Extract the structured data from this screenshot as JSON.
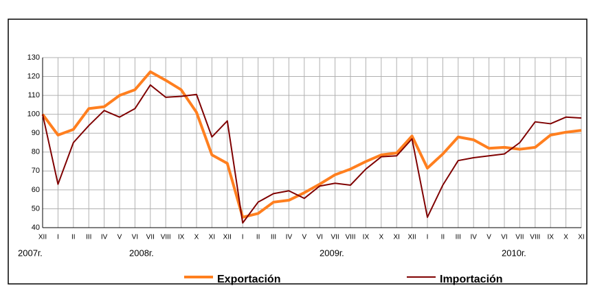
{
  "chart_data": {
    "type": "line",
    "categories": [
      "XII",
      "I",
      "II",
      "III",
      "IV",
      "V",
      "VI",
      "VII",
      "VIII",
      "IX",
      "X",
      "XI",
      "XII",
      "I",
      "II",
      "III",
      "IV",
      "V",
      "VI",
      "VII",
      "VIII",
      "IX",
      "X",
      "XI",
      "XII",
      "I",
      "II",
      "III",
      "IV",
      "V",
      "VI",
      "VII",
      "VIII",
      "IX",
      "X",
      "XI"
    ],
    "year_labels": [
      "2007г.",
      "2008г.",
      "2009г.",
      "2010г."
    ],
    "series": [
      {
        "name": "Exportación",
        "color": "#ff7f1f",
        "values": [
          100,
          89,
          92,
          103,
          104,
          110,
          113,
          122.5,
          118,
          113,
          101,
          78.5,
          74,
          45.5,
          47.5,
          53.5,
          54.5,
          58.5,
          63,
          68,
          71,
          75,
          78.5,
          79.5,
          88.5,
          71.5,
          79,
          88,
          86.5,
          82,
          82.5,
          81.5,
          82.5,
          89,
          90.5,
          91.5
        ]
      },
      {
        "name": "Importación",
        "color": "#7f0000",
        "values": [
          100,
          63,
          85,
          94,
          102,
          98.5,
          103,
          115.5,
          109,
          109.5,
          110.5,
          88,
          96.5,
          42.5,
          53.5,
          58,
          59.5,
          55.5,
          62,
          63.5,
          62.5,
          71,
          77.5,
          78,
          87,
          45.5,
          62.5,
          75.5,
          77,
          78,
          79,
          85,
          96,
          95,
          98.5,
          98
        ]
      }
    ],
    "ylim": [
      40,
      130
    ],
    "yticks": [
      40,
      50,
      60,
      70,
      80,
      90,
      100,
      110,
      120,
      130
    ],
    "grid": true
  }
}
